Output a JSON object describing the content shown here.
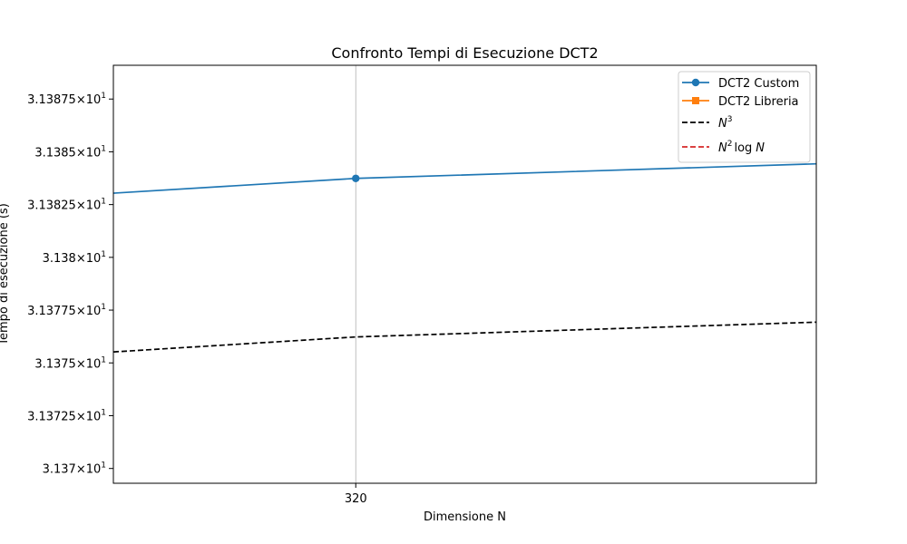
{
  "chart_data": {
    "type": "line",
    "title": "Confronto Tempi di Esecuzione DCT2",
    "xlabel": "Dimensione N",
    "ylabel": "Tempo di esecuzione (s)",
    "x_ticks": [
      320
    ],
    "x_tick_labels": [
      "320"
    ],
    "y_scale": "log",
    "y_tick_values": [
      31.37,
      31.3725,
      31.375,
      31.3775,
      31.38,
      31.3825,
      31.385,
      31.3875
    ],
    "y_tick_mantissas": [
      "3.137",
      "3.13725",
      "3.1375",
      "3.13775",
      "3.138",
      "3.13825",
      "3.1385",
      "3.13875"
    ],
    "y_tick_exponent": "1",
    "y_tick_times": "×",
    "y_tick_base": "10",
    "xlim": [
      220,
      510
    ],
    "ylim": [
      31.3693,
      31.3891
    ],
    "grid": "x-only",
    "legend_position": "top-right",
    "series": [
      {
        "name": "DCT2 Custom",
        "legend_label": "DCT2 Custom",
        "color": "#1f77b4",
        "style": "solid",
        "marker": "circle",
        "x": [
          220,
          320,
          510
        ],
        "y": [
          31.38304,
          31.38374,
          31.38443
        ],
        "marker_x": [
          320
        ]
      },
      {
        "name": "DCT2 Libreria",
        "legend_label": "DCT2 Libreria",
        "color": "#ff7f0e",
        "style": "solid",
        "marker": "square",
        "x": [],
        "y": []
      },
      {
        "name": "N^3",
        "legend_base": "N",
        "legend_sup": "3",
        "color": "#000000",
        "style": "dashed",
        "x": [
          220,
          320,
          510
        ],
        "y": [
          31.37552,
          31.37623,
          31.37693
        ]
      },
      {
        "name": "N^2 log N",
        "legend_base": "N",
        "legend_sup": "2",
        "legend_log": "log",
        "legend_tail": "N",
        "color": "#d62728",
        "style": "dashed",
        "x": [],
        "y": []
      }
    ]
  }
}
